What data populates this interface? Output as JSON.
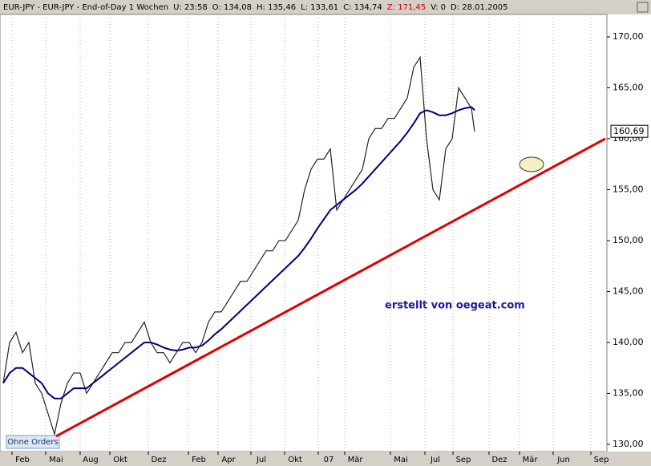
{
  "header": {
    "parts": [
      "EUR-JPY - EUR-JPY - End-of-Day 1 Wochen",
      "U: 23:58",
      "O: 134,08",
      "H: 135,46",
      "L: 133,61",
      "C: 134,74",
      "Z: 171,45",
      "V: 0",
      "D: 28.01.2005"
    ]
  },
  "chart_data": {
    "type": "line",
    "x": [
      1,
      3,
      5,
      7,
      9,
      11,
      13,
      15,
      17,
      19,
      21,
      23,
      25,
      27,
      29,
      31,
      33,
      35,
      37,
      39,
      41,
      43,
      45,
      47,
      49,
      51,
      53,
      55,
      57,
      59,
      61,
      63,
      65,
      67,
      69,
      71,
      73,
      75,
      77,
      79,
      81,
      83,
      85,
      87,
      89,
      91,
      93,
      95,
      97,
      99,
      101,
      103,
      105,
      107,
      109,
      111,
      113,
      115,
      117,
      119,
      121,
      123,
      125,
      127,
      129,
      131,
      133,
      135,
      137,
      139,
      141,
      143,
      145,
      147,
      148
    ],
    "series": [
      {
        "color": "#222222",
        "values": [
          136,
          140,
          141,
          139,
          140,
          136,
          135,
          133,
          131,
          134,
          136,
          137,
          137,
          135,
          136,
          137,
          138,
          139,
          139,
          140,
          140,
          141,
          142,
          140,
          139,
          139,
          138,
          139,
          140,
          140,
          139,
          140,
          142,
          143,
          143,
          144,
          145,
          146,
          146,
          147,
          148,
          149,
          149,
          150,
          150,
          151,
          152,
          155,
          157,
          158,
          158,
          159,
          153,
          154,
          155,
          156,
          157,
          160,
          161,
          161,
          162,
          162,
          163,
          164,
          167,
          168,
          160,
          155,
          154,
          159,
          160,
          165,
          164,
          163,
          160.69
        ]
      },
      {
        "color": "#000080",
        "values": [
          136,
          137,
          137.5,
          137.5,
          137,
          136.5,
          136,
          135,
          134.5,
          134.5,
          135,
          135.5,
          135.5,
          135.5,
          136,
          136.5,
          137,
          137.5,
          138,
          138.5,
          139,
          139.5,
          140,
          140,
          139.8,
          139.5,
          139.3,
          139.2,
          139.3,
          139.5,
          139.5,
          139.7,
          140.2,
          140.8,
          141.3,
          141.9,
          142.5,
          143.1,
          143.7,
          144.3,
          144.9,
          145.5,
          146.1,
          146.7,
          147.3,
          147.9,
          148.5,
          149.3,
          150.2,
          151.2,
          152.1,
          153,
          153.5,
          154,
          154.5,
          155,
          155.6,
          156.3,
          157,
          157.7,
          158.4,
          159.1,
          159.8,
          160.6,
          161.5,
          162.5,
          162.8,
          162.6,
          162.3,
          162.3,
          162.5,
          162.8,
          163,
          163.1,
          162.8
        ]
      }
    ],
    "trendline": {
      "x": [
        17.5,
        188.75
      ],
      "y": [
        130.79,
        160.0
      ],
      "color": "#e00000"
    },
    "last_price": {
      "value": 160.69,
      "label": "160,69"
    },
    "annotation": "erstellt von oegeat.com",
    "xlim": [
      0,
      189.25
    ],
    "ylim": [
      129.29,
      172.2
    ],
    "xticks": [
      {
        "value": 3.75,
        "label": "Feb"
      },
      {
        "value": 14.25,
        "label": "Mai"
      },
      {
        "value": 25,
        "label": "Aug"
      },
      {
        "value": 34.25,
        "label": "Okt"
      },
      {
        "value": 46.25,
        "label": "Dez"
      },
      {
        "value": 58.75,
        "label": "Feb"
      },
      {
        "value": 68,
        "label": "Apr"
      },
      {
        "value": 78.25,
        "label": "Jul"
      },
      {
        "value": 88.75,
        "label": "Okt"
      },
      {
        "value": 99.25,
        "label": "07"
      },
      {
        "value": 107.5,
        "label": "Mär"
      },
      {
        "value": 121.75,
        "label": "Mai"
      },
      {
        "value": 132.5,
        "label": "Jul"
      },
      {
        "value": 141.25,
        "label": "Sep"
      },
      {
        "value": 152.5,
        "label": "Dez"
      },
      {
        "value": 162,
        "label": "Mär"
      },
      {
        "value": 172.5,
        "label": "Jun"
      },
      {
        "value": 184.25,
        "label": "Sep"
      }
    ],
    "yticks": [
      {
        "value": 130,
        "label": "130,00"
      },
      {
        "value": 135,
        "label": "135,00"
      },
      {
        "value": 140,
        "label": "140,00"
      },
      {
        "value": 145,
        "label": "145,00"
      },
      {
        "value": 150,
        "label": "150,00"
      },
      {
        "value": 155,
        "label": "155,00"
      },
      {
        "value": 160,
        "label": "160,00"
      },
      {
        "value": 165,
        "label": "165,00"
      },
      {
        "value": 170,
        "label": "170,00"
      }
    ],
    "grid": true
  },
  "button": "Ohne Orders"
}
